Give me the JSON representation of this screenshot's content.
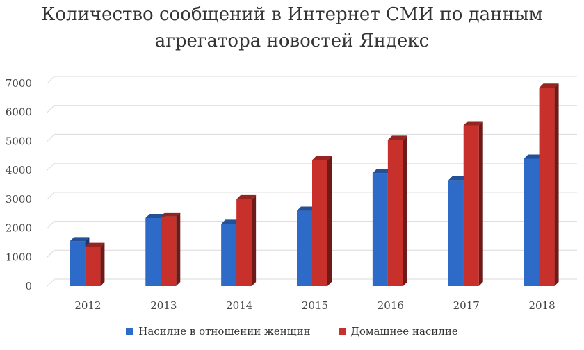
{
  "chart_data": {
    "type": "bar",
    "title_lines": [
      "Количество сообщений в Интернет СМИ по данным",
      "агрегатора новостей Яндекс"
    ],
    "categories": [
      "2012",
      "2013",
      "2014",
      "2015",
      "2016",
      "2017",
      "2018"
    ],
    "series": [
      {
        "name": "Насилие в отношении женщин",
        "color": "#2e6ac8",
        "values": [
          1550,
          2350,
          2150,
          2600,
          3900,
          3650,
          4400
        ]
      },
      {
        "name": "Домашнее насилие",
        "color": "#c8302c",
        "values": [
          1350,
          2400,
          3000,
          4350,
          5050,
          5550,
          6850
        ]
      }
    ],
    "ylim": [
      0,
      7000
    ],
    "yticks": [
      0,
      1000,
      2000,
      3000,
      4000,
      5000,
      6000,
      7000
    ],
    "grid": true,
    "legend_position": "bottom",
    "style": "3d-column"
  }
}
